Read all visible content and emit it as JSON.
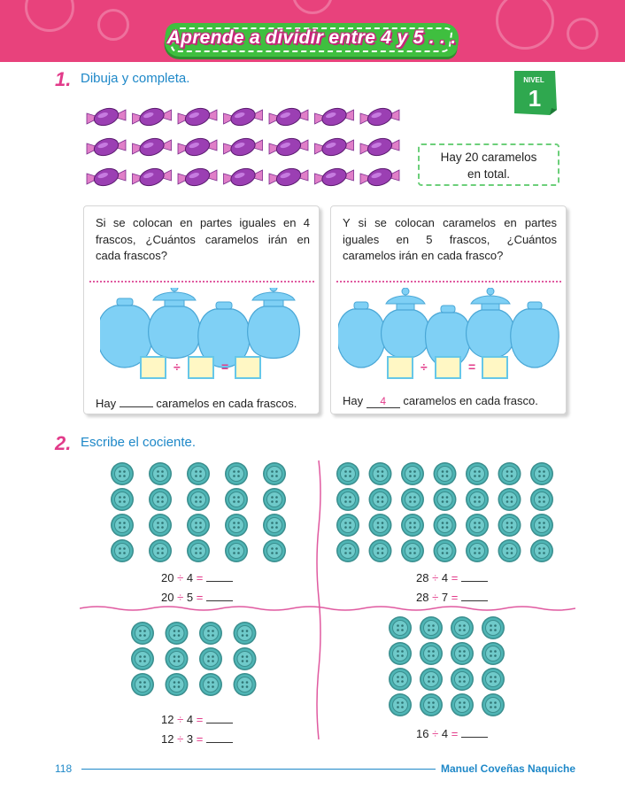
{
  "header": {
    "title": "Aprende a dividir entre 4 y 5 . . ."
  },
  "badge": {
    "label": "NIVEL",
    "number": "1"
  },
  "section1": {
    "number": "1.",
    "title": "Dibuja y completa.",
    "info_line1": "Hay 20 caramelos",
    "info_line2": "en total.",
    "left_problem": {
      "text": "Si se colocan en partes iguales en 4 frascos, ¿Cuántos caramelos irán en cada frascos?",
      "div_sign": "÷",
      "eq_sign": "=",
      "hay": "Hay",
      "answer": "",
      "rest": "caramelos en cada frascos."
    },
    "right_problem": {
      "text": "Y si se colocan caramelos en partes iguales en 5 frascos, ¿Cuántos caramelos irán en cada frasco?",
      "div_sign": "÷",
      "eq_sign": "=",
      "hay": "Hay",
      "answer": "4",
      "rest": "caramelos en cada frasco."
    }
  },
  "section2": {
    "number": "2.",
    "title": "Escribe el cociente.",
    "quadrants": [
      {
        "equations": [
          {
            "left": "20",
            "op": "÷",
            "right": "4",
            "eq": "="
          },
          {
            "left": "20",
            "op": "÷",
            "right": "5",
            "eq": "="
          }
        ]
      },
      {
        "equations": [
          {
            "left": "28",
            "op": "÷",
            "right": "4",
            "eq": "="
          },
          {
            "left": "28",
            "op": "÷",
            "right": "7",
            "eq": "="
          }
        ]
      },
      {
        "equations": [
          {
            "left": "12",
            "op": "÷",
            "right": "4",
            "eq": "="
          },
          {
            "left": "12",
            "op": "÷",
            "right": "3",
            "eq": "="
          }
        ]
      },
      {
        "equations": [
          {
            "left": "16",
            "op": "÷",
            "right": "4",
            "eq": "="
          }
        ]
      }
    ]
  },
  "footer": {
    "page": "118",
    "author": "Manuel Coveñas Naquiche"
  },
  "colors": {
    "header_pink": "#e8427c",
    "banner_green": "#3fbf3f",
    "candy_purple": "#9b3fb3",
    "jar_blue": "#7fd0f5",
    "button_teal": "#4fb5b5",
    "accent_blue": "#1e88c8",
    "accent_pink": "#e23b8a"
  }
}
